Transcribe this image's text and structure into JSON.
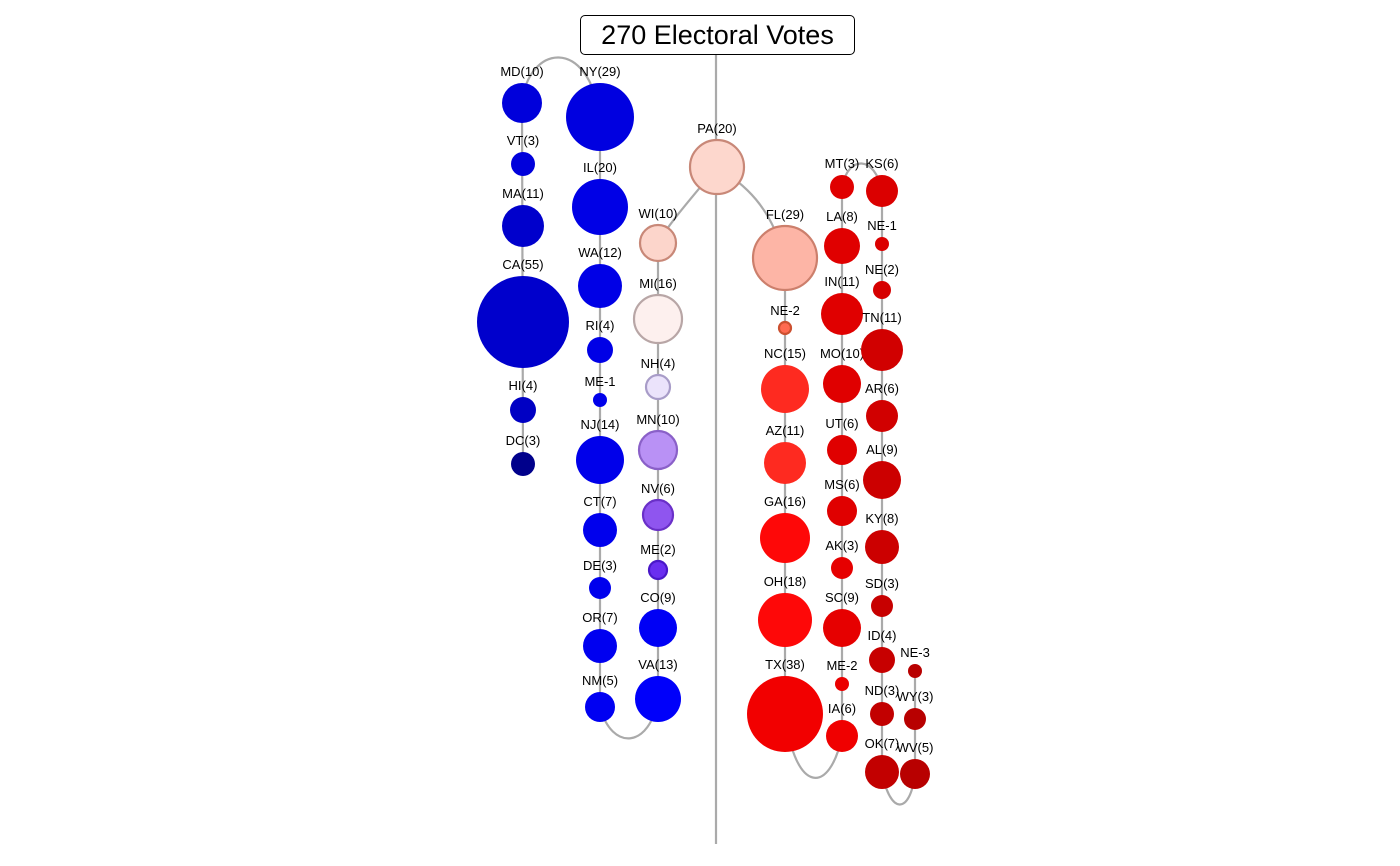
{
  "title": "270 Electoral Votes",
  "colors": {
    "link": "#aaaaaa",
    "midline": "#aaaaaa"
  },
  "states": [
    {
      "id": "MD",
      "label": "MD(10)",
      "fill": "#0000db"
    },
    {
      "id": "VT",
      "label": "VT(3)",
      "fill": "#0000db"
    },
    {
      "id": "MA",
      "label": "MA(11)",
      "fill": "#0000cc"
    },
    {
      "id": "CA",
      "label": "CA(55)",
      "fill": "#0000cc"
    },
    {
      "id": "HI",
      "label": "HI(4)",
      "fill": "#0000c4"
    },
    {
      "id": "DC",
      "label": "DC(3)",
      "fill": "#00008b"
    },
    {
      "id": "NY",
      "label": "NY(29)",
      "fill": "#0000e0"
    },
    {
      "id": "IL",
      "label": "IL(20)",
      "fill": "#0000e6"
    },
    {
      "id": "WA",
      "label": "WA(12)",
      "fill": "#0000e6"
    },
    {
      "id": "RI",
      "label": "RI(4)",
      "fill": "#0000e6"
    },
    {
      "id": "ME-1",
      "label": "ME-1",
      "fill": "#0000ea"
    },
    {
      "id": "NJ",
      "label": "NJ(14)",
      "fill": "#0000ea"
    },
    {
      "id": "CT",
      "label": "CT(7)",
      "fill": "#0000ed"
    },
    {
      "id": "DE",
      "label": "DE(3)",
      "fill": "#0000ed"
    },
    {
      "id": "OR",
      "label": "OR(7)",
      "fill": "#0000f0"
    },
    {
      "id": "NM",
      "label": "NM(5)",
      "fill": "#0000f2"
    },
    {
      "id": "WI",
      "label": "WI(10)",
      "fill": "#fcd5cb",
      "stroke": "#c88878"
    },
    {
      "id": "MI",
      "label": "MI(16)",
      "fill": "#fdf0ee",
      "stroke": "#b8a6a6"
    },
    {
      "id": "NH",
      "label": "NH(4)",
      "fill": "#ebe3fb",
      "stroke": "#a89cc8"
    },
    {
      "id": "MN",
      "label": "MN(10)",
      "fill": "#b991f5",
      "stroke": "#8a60c8"
    },
    {
      "id": "NV",
      "label": "NV(6)",
      "fill": "#8f55ef",
      "stroke": "#6a30c8"
    },
    {
      "id": "ME",
      "label": "ME(2)",
      "fill": "#6a2ef0",
      "stroke": "#4a18c8"
    },
    {
      "id": "CO",
      "label": "CO(9)",
      "fill": "#0000f5"
    },
    {
      "id": "VA",
      "label": "VA(13)",
      "fill": "#0000fa"
    },
    {
      "id": "PA",
      "label": "PA(20)",
      "fill": "#fdd7cd",
      "stroke": "#c88878"
    },
    {
      "id": "FL",
      "label": "FL(29)",
      "fill": "#fdb5a6",
      "stroke": "#cc7f6c"
    },
    {
      "id": "NE-2",
      "label": "NE-2",
      "fill": "#ff6a50",
      "stroke": "#cc5030"
    },
    {
      "id": "NC",
      "label": "NC(15)",
      "fill": "#fe2a20"
    },
    {
      "id": "AZ",
      "label": "AZ(11)",
      "fill": "#fe2a20"
    },
    {
      "id": "GA",
      "label": "GA(16)",
      "fill": "#fe0808"
    },
    {
      "id": "OH",
      "label": "OH(18)",
      "fill": "#fe0808"
    },
    {
      "id": "TX",
      "label": "TX(38)",
      "fill": "#f20000"
    },
    {
      "id": "MT",
      "label": "MT(3)",
      "fill": "#e00000"
    },
    {
      "id": "LA",
      "label": "LA(8)",
      "fill": "#e00000"
    },
    {
      "id": "IN",
      "label": "IN(11)",
      "fill": "#e00000"
    },
    {
      "id": "MO",
      "label": "MO(10)",
      "fill": "#e00000"
    },
    {
      "id": "UT",
      "label": "UT(6)",
      "fill": "#e00000"
    },
    {
      "id": "MS",
      "label": "MS(6)",
      "fill": "#e00000"
    },
    {
      "id": "AK",
      "label": "AK(3)",
      "fill": "#e60000"
    },
    {
      "id": "SC",
      "label": "SC(9)",
      "fill": "#e60000"
    },
    {
      "id": "ME-2",
      "label": "ME-2",
      "fill": "#eb0000"
    },
    {
      "id": "IA",
      "label": "IA(6)",
      "fill": "#f00000"
    },
    {
      "id": "KS",
      "label": "KS(6)",
      "fill": "#db0000"
    },
    {
      "id": "NE-1",
      "label": "NE-1",
      "fill": "#db0000"
    },
    {
      "id": "NE",
      "label": "NE(2)",
      "fill": "#d60000"
    },
    {
      "id": "TN",
      "label": "TN(11)",
      "fill": "#d10000"
    },
    {
      "id": "AR",
      "label": "AR(6)",
      "fill": "#d10000"
    },
    {
      "id": "AL",
      "label": "AL(9)",
      "fill": "#cc0000"
    },
    {
      "id": "KY",
      "label": "KY(8)",
      "fill": "#cc0000"
    },
    {
      "id": "SD",
      "label": "SD(3)",
      "fill": "#c70000"
    },
    {
      "id": "ID",
      "label": "ID(4)",
      "fill": "#c70000"
    },
    {
      "id": "ND",
      "label": "ND(3)",
      "fill": "#c20000"
    },
    {
      "id": "OK",
      "label": "OK(7)",
      "fill": "#c20000"
    },
    {
      "id": "NE-3",
      "label": "NE-3",
      "fill": "#b80000"
    },
    {
      "id": "WY",
      "label": "WY(3)",
      "fill": "#b80000"
    },
    {
      "id": "WV",
      "label": "WV(5)",
      "fill": "#b80000"
    }
  ]
}
